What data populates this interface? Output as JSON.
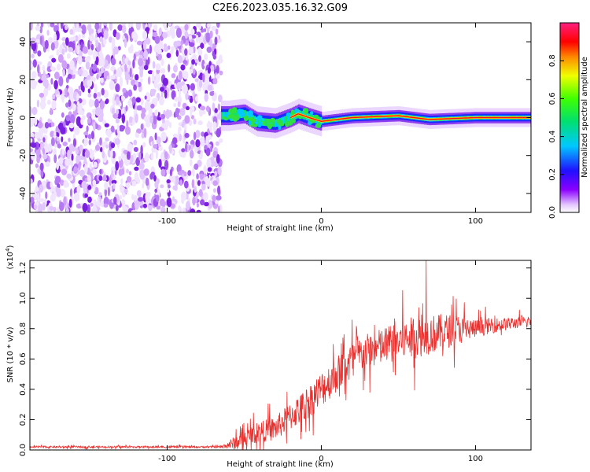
{
  "figure_title": "C2E6.2023.035.16.32.G09",
  "colors": {
    "snr_line": "#e8312f",
    "spectrogram_noise": "#7b1fe0",
    "background": "#ffffff"
  },
  "chart_data": [
    {
      "type": "heatmap",
      "title": "C2E6.2023.035.16.32.G09",
      "xlabel": "Height of straight line (km)",
      "ylabel": "Frequency (Hz)",
      "xlim": [
        -189,
        136
      ],
      "ylim": [
        -50,
        50
      ],
      "x_ticks": [
        "-100",
        "0",
        "100"
      ],
      "x_tick_values": [
        -100,
        0,
        100
      ],
      "y_ticks": [
        "-40",
        "-20",
        "0",
        "20",
        "40"
      ],
      "y_tick_values": [
        -40,
        -20,
        0,
        20,
        40
      ],
      "colormap": "rainbow (purple → blue → cyan → green → yellow → red → magenta)",
      "colorbar": {
        "label": "Normalized spectral amplitude",
        "ticks": [
          "0.0",
          "0.2",
          "0.4",
          "0.6",
          "0.8"
        ],
        "tick_values": [
          0.0,
          0.2,
          0.4,
          0.6,
          0.8
        ],
        "range": [
          0,
          1
        ]
      },
      "regions": [
        {
          "x_range": [
            -189,
            -65
          ],
          "description": "broadband noise across all frequencies",
          "amplitude": 0.05
        },
        {
          "x_range": [
            -65,
            136
          ],
          "description": "narrow band near 0 Hz",
          "amplitude": 0.9
        }
      ],
      "band_center": [
        {
          "x": -60,
          "y": 1
        },
        {
          "x": -50,
          "y": 2
        },
        {
          "x": -42,
          "y": -2
        },
        {
          "x": -30,
          "y": -3
        },
        {
          "x": -20,
          "y": 0
        },
        {
          "x": -15,
          "y": 2
        },
        {
          "x": -8,
          "y": 0
        },
        {
          "x": 0,
          "y": -2
        },
        {
          "x": 20,
          "y": 0
        },
        {
          "x": 50,
          "y": 1
        },
        {
          "x": 70,
          "y": -1
        },
        {
          "x": 100,
          "y": 0
        },
        {
          "x": 136,
          "y": 0
        }
      ]
    },
    {
      "type": "line",
      "xlabel": "Height of straight line (km)",
      "ylabel": "SNR (10 * v/v)",
      "y_multiplier": "(x10",
      "y_multiplier_exp": "4",
      "y_multiplier_close": ")",
      "xlim": [
        -189,
        136
      ],
      "ylim": [
        0,
        1.25
      ],
      "x_ticks": [
        "-100",
        "0",
        "100"
      ],
      "x_tick_values": [
        -100,
        0,
        100
      ],
      "y_ticks": [
        "0.0",
        "0.2",
        "0.4",
        "0.6",
        "0.8",
        "1.0",
        "1.2"
      ],
      "y_tick_values": [
        0.0,
        0.2,
        0.4,
        0.6,
        0.8,
        1.0,
        1.2
      ],
      "series": [
        {
          "trend": [
            {
              "x": -189,
              "y": 0.02
            },
            {
              "x": -65,
              "y": 0.02
            },
            {
              "x": -55,
              "y": 0.05
            },
            {
              "x": -40,
              "y": 0.12
            },
            {
              "x": -30,
              "y": 0.14
            },
            {
              "x": -20,
              "y": 0.22
            },
            {
              "x": -10,
              "y": 0.3
            },
            {
              "x": 0,
              "y": 0.4
            },
            {
              "x": 10,
              "y": 0.5
            },
            {
              "x": 20,
              "y": 0.6
            },
            {
              "x": 30,
              "y": 0.65
            },
            {
              "x": 40,
              "y": 0.68
            },
            {
              "x": 50,
              "y": 0.72
            },
            {
              "x": 60,
              "y": 0.74
            },
            {
              "x": 70,
              "y": 0.76
            },
            {
              "x": 80,
              "y": 0.78
            },
            {
              "x": 90,
              "y": 0.8
            },
            {
              "x": 100,
              "y": 0.8
            },
            {
              "x": 110,
              "y": 0.82
            },
            {
              "x": 120,
              "y": 0.83
            },
            {
              "x": 136,
              "y": 0.85
            }
          ],
          "noise_amplitude": [
            {
              "x": -189,
              "y": 0.006
            },
            {
              "x": -65,
              "y": 0.006
            },
            {
              "x": -55,
              "y": 0.05
            },
            {
              "x": -30,
              "y": 0.08
            },
            {
              "x": 0,
              "y": 0.12
            },
            {
              "x": 30,
              "y": 0.12
            },
            {
              "x": 60,
              "y": 0.14
            },
            {
              "x": 80,
              "y": 0.12
            },
            {
              "x": 100,
              "y": 0.06
            },
            {
              "x": 136,
              "y": 0.03
            }
          ],
          "max": {
            "x": 68,
            "y": 1.25
          }
        }
      ]
    }
  ]
}
